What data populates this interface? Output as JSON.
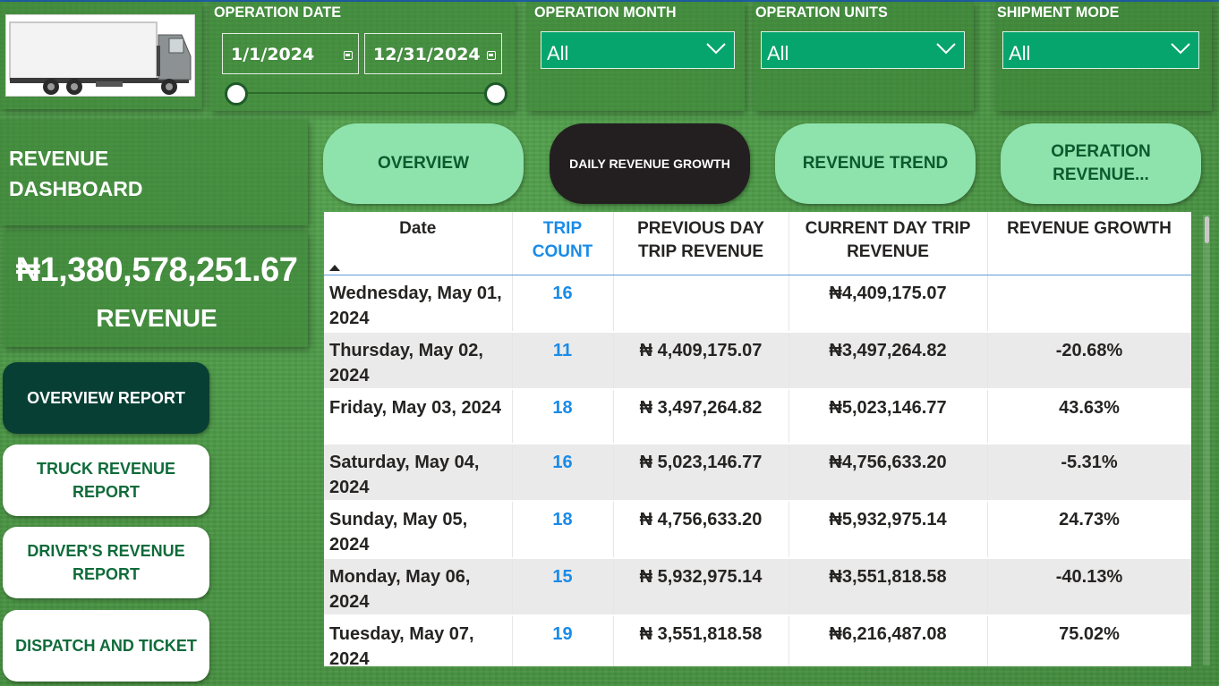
{
  "slicers": {
    "operation_date": {
      "title": "OPERATION DATE",
      "start": "1/1/2024",
      "end": "12/31/2024"
    },
    "operation_month": {
      "title": "OPERATION MONTH",
      "value": "All"
    },
    "operation_units": {
      "title": "OPERATION UNITS",
      "value": "All"
    },
    "shipment_mode": {
      "title": "SHIPMENT MODE",
      "value": "All"
    }
  },
  "sidebar": {
    "title_line1": "REVENUE",
    "title_line2": "DASHBOARD",
    "kpi_value": "₦1,380,578,251.67",
    "kpi_label": "REVENUE",
    "nav": [
      {
        "label": "OVERVIEW REPORT",
        "active": true
      },
      {
        "label": "TRUCK REVENUE REPORT",
        "active": false
      },
      {
        "label": "DRIVER'S REVENUE REPORT",
        "active": false
      },
      {
        "label": "DISPATCH AND TICKET",
        "active": false
      }
    ]
  },
  "tabs": [
    {
      "label": "OVERVIEW",
      "active": false
    },
    {
      "label": "DAILY REVENUE GROWTH",
      "active": true
    },
    {
      "label": "REVENUE TREND",
      "active": false
    },
    {
      "label": "OPERATION REVENUE...",
      "active": false
    }
  ],
  "table": {
    "columns": [
      "Date",
      "TRIP COUNT",
      "PREVIOUS DAY TRIP REVENUE",
      "CURRENT DAY TRIP REVENUE",
      "REVENUE GROWTH"
    ],
    "rows": [
      {
        "date": "Wednesday, May 01, 2024",
        "trip": "16",
        "prev": "",
        "curr": "₦4,409,175.07",
        "growth": ""
      },
      {
        "date": "Thursday, May 02, 2024",
        "trip": "11",
        "prev": "₦ 4,409,175.07",
        "curr": "₦3,497,264.82",
        "growth": "-20.68%"
      },
      {
        "date": "Friday, May 03, 2024",
        "trip": "18",
        "prev": "₦ 3,497,264.82",
        "curr": "₦5,023,146.77",
        "growth": "43.63%"
      },
      {
        "date": "Saturday, May 04, 2024",
        "trip": "16",
        "prev": "₦ 5,023,146.77",
        "curr": "₦4,756,633.20",
        "growth": "-5.31%"
      },
      {
        "date": "Sunday, May 05, 2024",
        "trip": "18",
        "prev": "₦ 4,756,633.20",
        "curr": "₦5,932,975.14",
        "growth": "24.73%"
      },
      {
        "date": "Monday, May 06, 2024",
        "trip": "15",
        "prev": "₦ 5,932,975.14",
        "curr": "₦3,551,818.58",
        "growth": "-40.13%"
      },
      {
        "date": "Tuesday, May 07, 2024",
        "trip": "19",
        "prev": "₦ 3,551,818.58",
        "curr": "₦6,216,487.08",
        "growth": "75.02%"
      }
    ]
  },
  "colors": {
    "background": "#4b9746",
    "dropdown": "#07a56e",
    "tab": "#8ee3ac",
    "tab_active": "#231f20",
    "nav_active": "#083f34",
    "accent_blue": "#1a8be8"
  }
}
